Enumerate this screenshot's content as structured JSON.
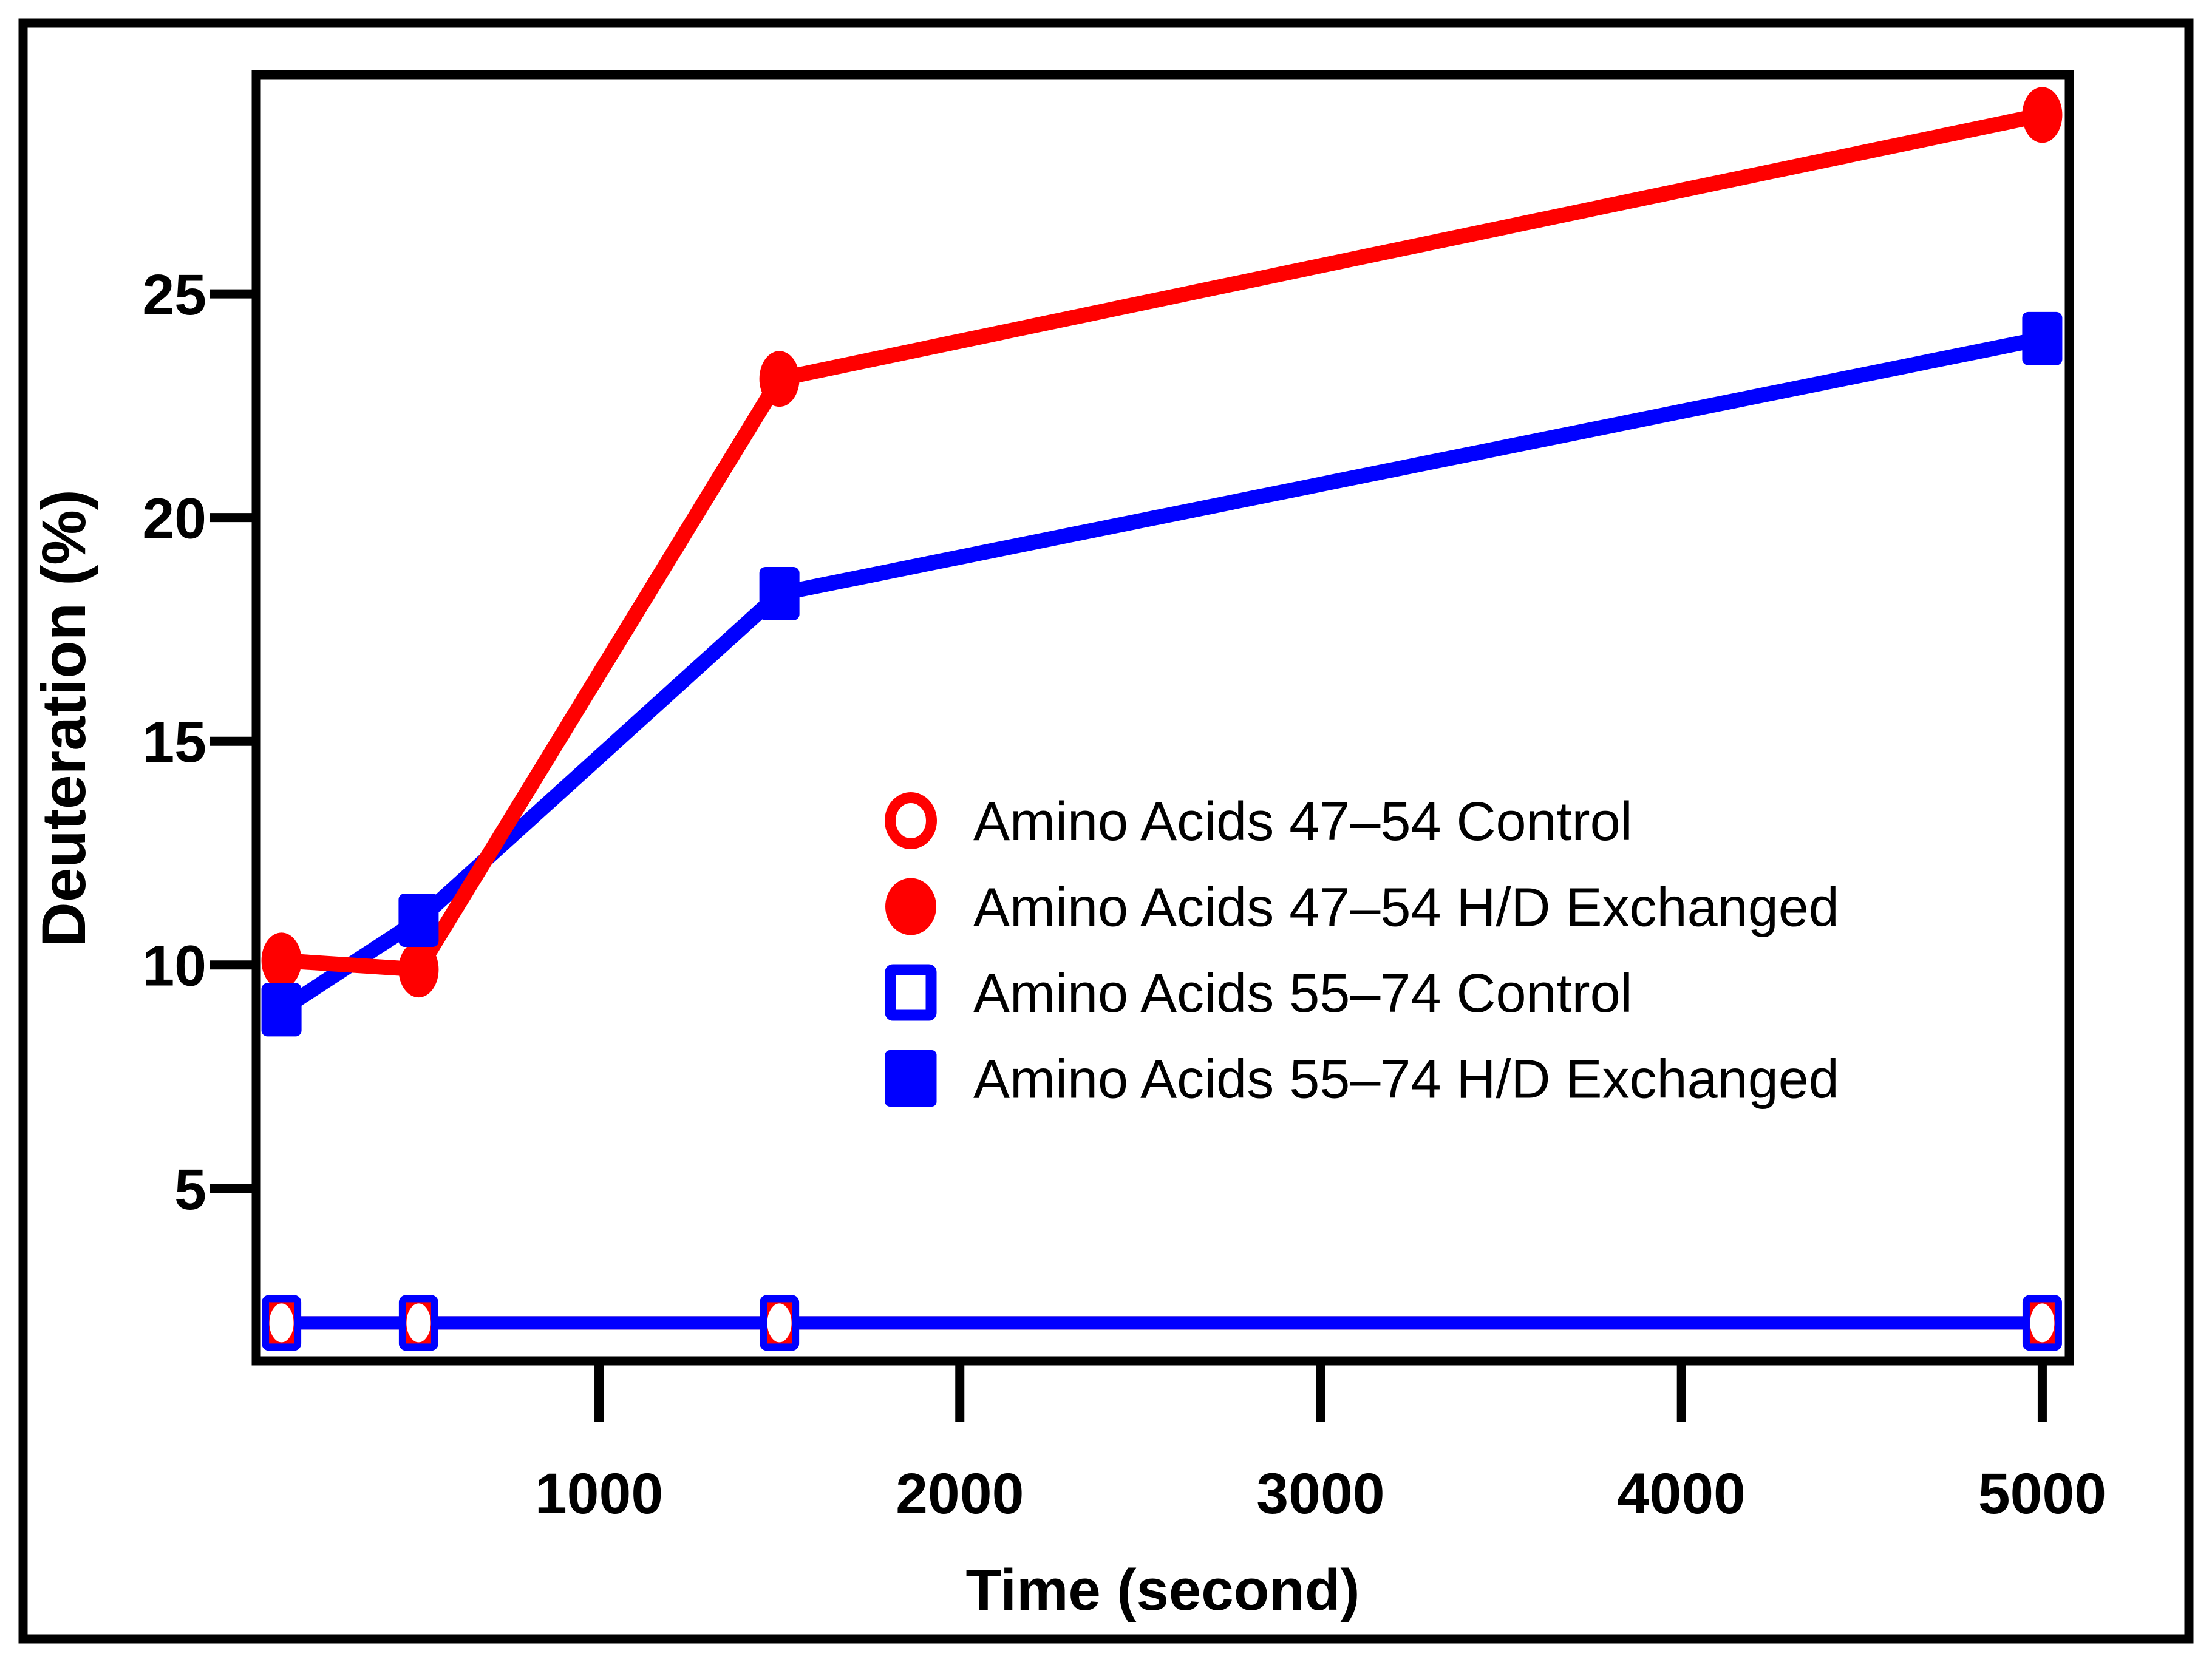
{
  "colors": {
    "red": "#ff0000",
    "blue": "#0000ff",
    "frame": "#000000",
    "background": "#ffffff"
  },
  "chart_data": {
    "type": "line",
    "title": "",
    "xlabel": "Time (second)",
    "ylabel": "Deuteration (%)",
    "xlim": [
      50,
      5075
    ],
    "ylim": [
      1.15,
      29.9
    ],
    "x_ticks": [
      1000,
      2000,
      3000,
      4000,
      5000
    ],
    "y_ticks": [
      5,
      10,
      15,
      20,
      25
    ],
    "grid": false,
    "legend_position": "inside center-right",
    "x": [
      120,
      500,
      1500,
      5000
    ],
    "series": [
      {
        "name": "Amino Acids 47–54 Control",
        "color": "#ff0000",
        "marker": "open-circle",
        "values": [
          2.0,
          2.0,
          2.0,
          2.0
        ]
      },
      {
        "name": "Amino Acids 47–54 H/D Exchanged",
        "color": "#ff0000",
        "marker": "filled-circle",
        "values": [
          10.1,
          9.9,
          23.1,
          29.0
        ]
      },
      {
        "name": "Amino Acids 55–74 Control",
        "color": "#0000ff",
        "marker": "open-square",
        "values": [
          2.0,
          2.0,
          2.0,
          2.0
        ]
      },
      {
        "name": "Amino Acids 55–74 H/D Exchanged",
        "color": "#0000ff",
        "marker": "filled-square",
        "values": [
          9.0,
          11.0,
          18.3,
          24.0
        ]
      }
    ]
  }
}
